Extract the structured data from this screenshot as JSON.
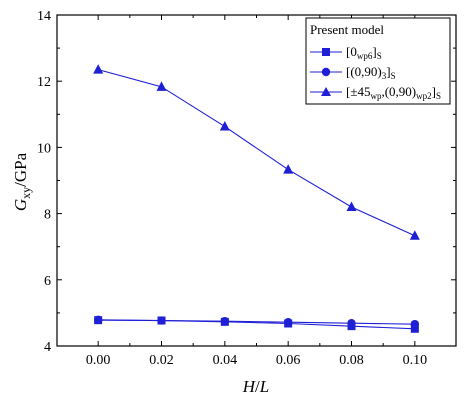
{
  "chart_data": {
    "type": "line",
    "x": [
      0.0,
      0.02,
      0.04,
      0.06,
      0.08,
      0.1
    ],
    "xlim": [
      -0.013,
      0.113
    ],
    "ylim": [
      4,
      14
    ],
    "xticks": [
      "0.00",
      "0.02",
      "0.04",
      "0.06",
      "0.08",
      "0.10"
    ],
    "yticks": [
      "4",
      "6",
      "8",
      "10",
      "12",
      "14"
    ],
    "xlabel": "H/L",
    "ylabel": "G_xy/GPa",
    "legend_title": "Present model",
    "legend_position": "top-right",
    "color": "#1f1fd6",
    "series": [
      {
        "name": "[0_wp6]_S",
        "marker": "square",
        "values": [
          4.78,
          4.77,
          4.73,
          4.68,
          4.6,
          4.52
        ]
      },
      {
        "name": "[(0,90)_3]_S",
        "marker": "circle",
        "values": [
          4.79,
          4.77,
          4.75,
          4.72,
          4.69,
          4.66
        ]
      },
      {
        "name": "[±45_wp,(0,90)_wp2]_S",
        "marker": "triangle",
        "values": [
          12.35,
          11.83,
          10.63,
          9.33,
          8.2,
          7.33
        ]
      }
    ]
  }
}
